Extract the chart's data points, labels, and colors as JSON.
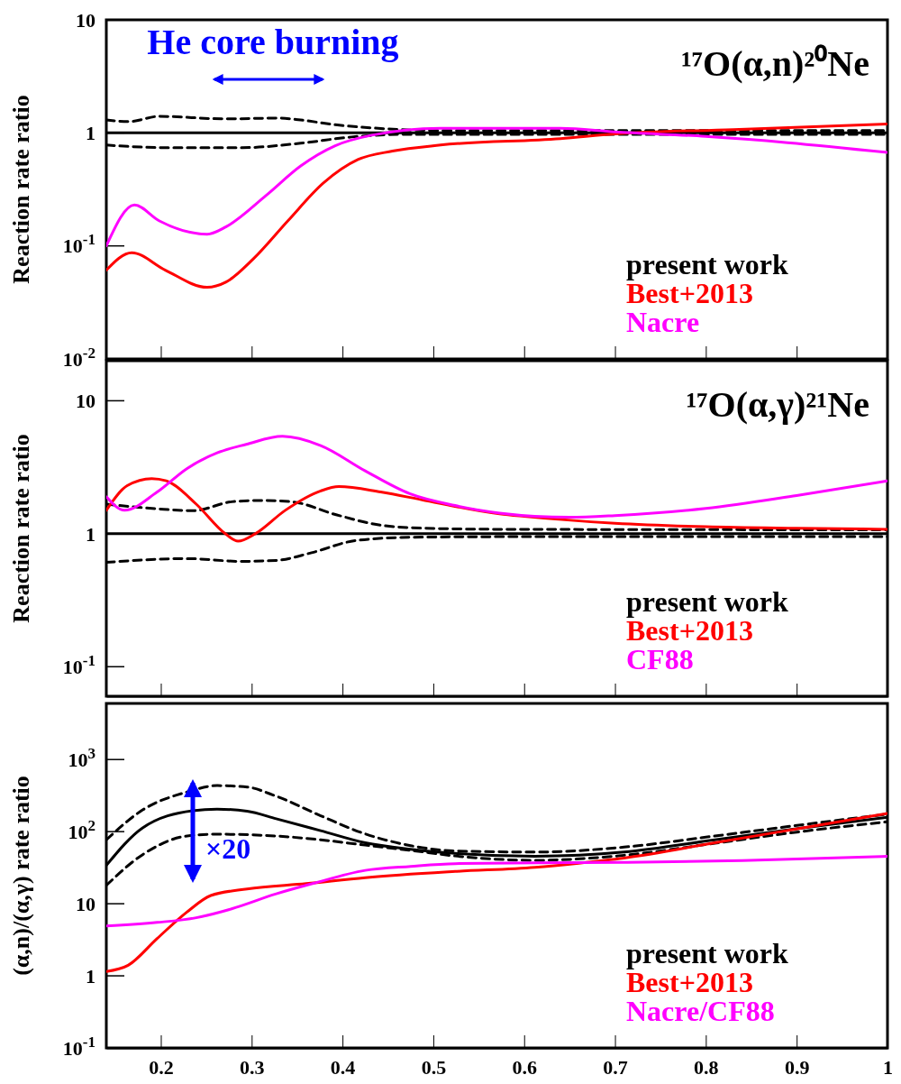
{
  "chart_data": [
    {
      "type": "line",
      "title": "¹⁷O(α,n)²⁰Ne",
      "ylabel": "Reaction rate ratio",
      "log": "y",
      "xlim": [
        0.14,
        1.0
      ],
      "ylim": [
        0.01,
        10
      ],
      "xticks": [
        0.2,
        0.3,
        0.4,
        0.5,
        0.6,
        0.7,
        0.8,
        0.9
      ],
      "yticks": [
        {
          "value": 0.01,
          "label": "10$^{-2}$"
        },
        {
          "value": 0.1,
          "label": "10$^{-1}$"
        },
        {
          "value": 1,
          "label": "1"
        },
        {
          "value": 10,
          "label": "10"
        }
      ],
      "tick_labels": "y",
      "legend": "bottom right",
      "grid": false,
      "annotations": [
        "He core burning"
      ],
      "series": [
        {
          "name": "present work",
          "color": "#000000",
          "line_style": "solid",
          "x": [
            0.14,
            1.0
          ],
          "values": [
            1,
            1
          ]
        },
        {
          "color": "#000000",
          "line_style": "dashed",
          "x": [
            0.14,
            0.165,
            0.198,
            0.27,
            0.33,
            0.354,
            0.392,
            0.445,
            0.5,
            0.7,
            1.0
          ],
          "values": [
            1.3,
            1.26,
            1.4,
            1.33,
            1.35,
            1.3,
            1.18,
            1.09,
            1.05,
            1.05,
            1.05
          ]
        },
        {
          "color": "#000000",
          "line_style": "dashed",
          "x": [
            0.14,
            0.205,
            0.29,
            0.354,
            0.41,
            0.47,
            0.6,
            1.0
          ],
          "values": [
            0.78,
            0.74,
            0.74,
            0.81,
            0.92,
            0.97,
            0.97,
            0.97
          ]
        },
        {
          "name": "Best+2013",
          "color": "#ff0000",
          "line_style": "solid",
          "x": [
            0.14,
            0.168,
            0.205,
            0.251,
            0.272,
            0.302,
            0.34,
            0.379,
            0.417,
            0.455,
            0.508,
            0.64,
            0.7,
            0.83,
            1.0
          ],
          "values": [
            0.061,
            0.087,
            0.061,
            0.043,
            0.048,
            0.077,
            0.167,
            0.36,
            0.58,
            0.69,
            0.78,
            0.89,
            0.98,
            1.07,
            1.2
          ]
        },
        {
          "name": "Nacre",
          "color": "#ff00ff",
          "line_style": "solid",
          "x": [
            0.14,
            0.171,
            0.198,
            0.251,
            0.272,
            0.316,
            0.354,
            0.392,
            0.431,
            0.508,
            0.64,
            0.7,
            0.8,
            0.89,
            1.0
          ],
          "values": [
            0.1,
            0.23,
            0.167,
            0.127,
            0.148,
            0.28,
            0.51,
            0.77,
            0.95,
            1.1,
            1.1,
            1.02,
            0.93,
            0.82,
            0.67
          ]
        }
      ]
    },
    {
      "type": "line",
      "title": "¹⁷O(α,γ)²¹Ne",
      "ylabel": "Reaction rate ratio",
      "log": "y",
      "xlim": [
        0.14,
        1.0
      ],
      "ylim": [
        0.06,
        20
      ],
      "xticks": [
        0.2,
        0.3,
        0.4,
        0.5,
        0.6,
        0.7,
        0.8,
        0.9
      ],
      "yticks": [
        {
          "value": 0.1,
          "label": "10$^{-1}$"
        },
        {
          "value": 1,
          "label": "1"
        },
        {
          "value": 10,
          "label": "10"
        }
      ],
      "tick_labels": "y",
      "legend": "bottom right",
      "grid": false,
      "series": [
        {
          "name": "present work",
          "color": "#000000",
          "line_style": "solid",
          "x": [
            0.14,
            1.0
          ],
          "values": [
            1,
            1
          ]
        },
        {
          "color": "#000000",
          "line_style": "dashed",
          "x": [
            0.14,
            0.196,
            0.236,
            0.278,
            0.31,
            0.344,
            0.393,
            0.442,
            0.491,
            0.573,
            1.0
          ],
          "values": [
            1.67,
            1.54,
            1.49,
            1.74,
            1.78,
            1.74,
            1.39,
            1.16,
            1.1,
            1.08,
            1.07
          ]
        },
        {
          "color": "#000000",
          "line_style": "dashed",
          "x": [
            0.14,
            0.229,
            0.288,
            0.327,
            0.366,
            0.415,
            0.474,
            0.573,
            1.0
          ],
          "values": [
            0.61,
            0.65,
            0.62,
            0.63,
            0.72,
            0.89,
            0.94,
            0.95,
            0.95
          ]
        },
        {
          "name": "Best+2013",
          "color": "#ff0000",
          "line_style": "solid",
          "x": [
            0.14,
            0.163,
            0.19,
            0.206,
            0.239,
            0.271,
            0.285,
            0.304,
            0.337,
            0.376,
            0.396,
            0.442,
            0.491,
            0.573,
            0.6,
            0.7,
            0.8,
            0.9,
            1.0
          ],
          "values": [
            1.5,
            2.3,
            2.6,
            2.5,
            1.67,
            1.0,
            0.88,
            1.0,
            1.5,
            2.1,
            2.26,
            2.06,
            1.78,
            1.41,
            1.35,
            1.2,
            1.13,
            1.1,
            1.08
          ]
        },
        {
          "name": "CF88",
          "color": "#ff00ff",
          "line_style": "solid",
          "x": [
            0.14,
            0.16,
            0.196,
            0.229,
            0.262,
            0.294,
            0.334,
            0.376,
            0.425,
            0.474,
            0.524,
            0.573,
            0.65,
            0.7,
            0.8,
            0.9,
            1.0
          ],
          "values": [
            1.9,
            1.5,
            2.06,
            3.1,
            4.06,
            4.7,
            5.4,
            4.6,
            2.97,
            2.0,
            1.63,
            1.43,
            1.33,
            1.37,
            1.55,
            1.94,
            2.5
          ]
        }
      ]
    },
    {
      "type": "line",
      "ylabel": "(α,n)/(α,γ) rate ratio",
      "log": "y",
      "xlim": [
        0.14,
        1.0
      ],
      "ylim": [
        0.1,
        6000
      ],
      "xticks": [
        0.2,
        0.3,
        0.4,
        0.5,
        0.6,
        0.7,
        0.8,
        0.9,
        1
      ],
      "yticks": [
        {
          "value": 0.1,
          "label": "10$^{-1}$"
        },
        {
          "value": 1,
          "label": "1"
        },
        {
          "value": 10,
          "label": "10"
        },
        {
          "value": 100,
          "label": "10$^{2}$"
        },
        {
          "value": 1000,
          "label": "10$^{3}$"
        }
      ],
      "legend": "bottom right",
      "grid": false,
      "annotations": [
        "×20"
      ],
      "series": [
        {
          "name": "present work",
          "color": "#000000",
          "line_style": "solid",
          "x": [
            0.14,
            0.18,
            0.235,
            0.262,
            0.295,
            0.327,
            0.376,
            0.425,
            0.475,
            0.524,
            0.612,
            0.71,
            0.81,
            0.907,
            1.0
          ],
          "values": [
            34,
            113,
            195,
            205,
            192,
            151,
            103,
            70,
            57,
            50,
            45.6,
            52,
            77,
            113,
            158
          ]
        },
        {
          "color": "#000000",
          "line_style": "dashed",
          "x": [
            0.14,
            0.18,
            0.229,
            0.262,
            0.295,
            0.327,
            0.376,
            0.425,
            0.475,
            0.524,
            0.612,
            0.71,
            0.81,
            0.907,
            1.0
          ],
          "values": [
            77,
            200,
            355,
            435,
            415,
            310,
            166,
            93,
            64,
            54,
            52,
            61,
            87,
            125,
            175
          ]
        },
        {
          "color": "#000000",
          "line_style": "dashed",
          "x": [
            0.14,
            0.18,
            0.229,
            0.262,
            0.327,
            0.376,
            0.425,
            0.475,
            0.524,
            0.612,
            0.71,
            0.81,
            0.907,
            1.0
          ],
          "values": [
            18,
            48,
            87,
            92,
            87,
            77,
            65,
            55,
            46,
            40,
            47,
            69,
            101,
            137
          ]
        },
        {
          "name": "Best+2013",
          "color": "#ff0000",
          "line_style": "solid",
          "x": [
            0.14,
            0.164,
            0.196,
            0.229,
            0.255,
            0.295,
            0.36,
            0.425,
            0.524,
            0.612,
            0.66,
            0.71,
            0.81,
            0.907,
            1.0
          ],
          "values": [
            1.15,
            1.4,
            3.3,
            7.7,
            13,
            16,
            19,
            23,
            28,
            32,
            36.5,
            43,
            70,
            113,
            179
          ]
        },
        {
          "name": "Nacre/CF88",
          "color": "#ff00ff",
          "line_style": "solid",
          "x": [
            0.14,
            0.196,
            0.239,
            0.278,
            0.327,
            0.367,
            0.425,
            0.475,
            0.524,
            0.71,
            0.84,
            1.0
          ],
          "values": [
            4.9,
            5.5,
            6.4,
            8.5,
            13.7,
            19,
            29,
            33,
            36,
            37.5,
            39.7,
            45.6
          ]
        }
      ]
    }
  ]
}
